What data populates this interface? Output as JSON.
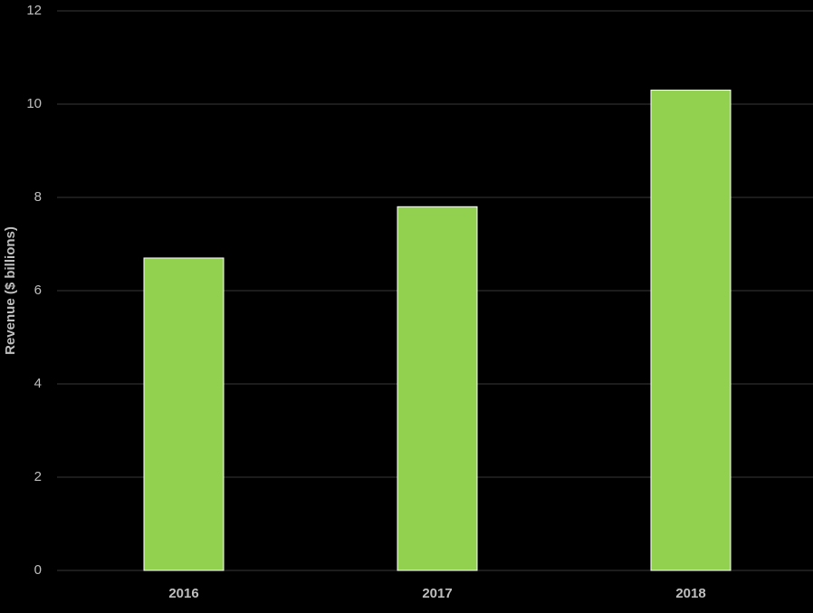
{
  "chart_data": {
    "type": "bar",
    "y_label": "Revenue ($ billions)",
    "categories": [
      "2016",
      "2017",
      "2018"
    ],
    "values": [
      6.7,
      7.8,
      10.3
    ],
    "color": "#92d050",
    "ylim": [
      0,
      12
    ],
    "yticks": [
      0,
      2,
      4,
      6,
      8,
      10,
      12
    ],
    "grid": true
  }
}
